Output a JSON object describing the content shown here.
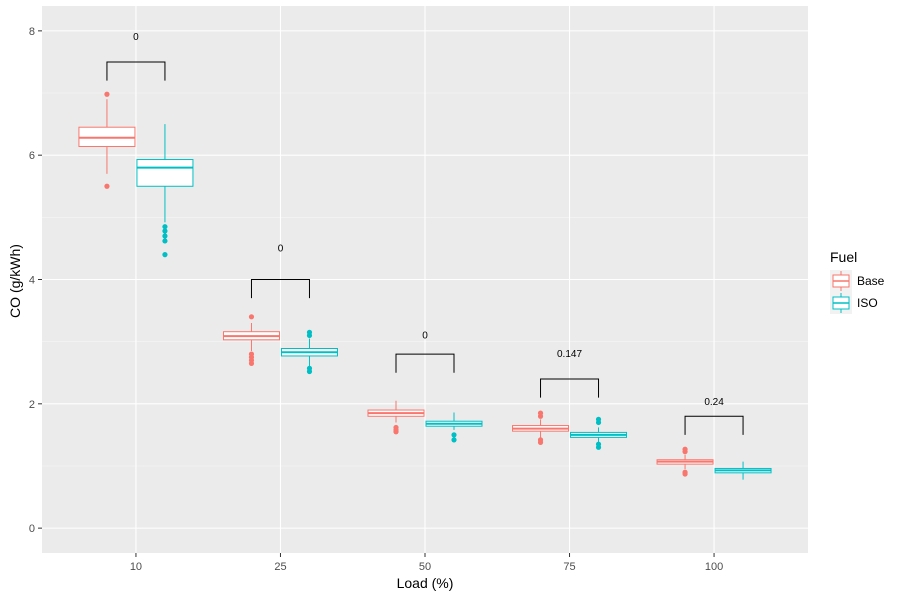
{
  "chart_data": {
    "type": "boxplot",
    "xlabel": "Load (%)",
    "ylabel": "CO (g/kWh)",
    "categories": [
      "10",
      "25",
      "50",
      "75",
      "100"
    ],
    "ylim": [
      -0.4,
      8.4
    ],
    "yticks": [
      0,
      2,
      4,
      6,
      8
    ],
    "grid": true,
    "legend": {
      "title": "Fuel",
      "position": "right",
      "entries": [
        "Base",
        "ISO"
      ]
    },
    "colors": {
      "Base": "#F8766D",
      "ISO": "#00BFC4"
    },
    "series": [
      {
        "name": "Base",
        "boxes": [
          {
            "category": "10",
            "whisker_low": 5.7,
            "q1": 6.14,
            "median": 6.28,
            "q3": 6.45,
            "whisker_high": 6.9,
            "outliers": [
              5.5,
              6.98
            ]
          },
          {
            "category": "25",
            "whisker_low": 2.85,
            "q1": 3.03,
            "median": 3.09,
            "q3": 3.16,
            "whisker_high": 3.3,
            "outliers": [
              2.65,
              2.7,
              2.75,
              2.8,
              3.4
            ]
          },
          {
            "category": "50",
            "whisker_low": 1.7,
            "q1": 1.8,
            "median": 1.85,
            "q3": 1.9,
            "whisker_high": 2.05,
            "outliers": [
              1.55,
              1.58,
              1.62
            ]
          },
          {
            "category": "75",
            "whisker_low": 1.45,
            "q1": 1.56,
            "median": 1.6,
            "q3": 1.65,
            "whisker_high": 1.75,
            "outliers": [
              1.38,
              1.42,
              1.8,
              1.85
            ]
          },
          {
            "category": "100",
            "whisker_low": 0.95,
            "q1": 1.03,
            "median": 1.07,
            "q3": 1.1,
            "whisker_high": 1.18,
            "outliers": [
              0.87,
              0.9,
              1.23,
              1.27
            ]
          }
        ]
      },
      {
        "name": "ISO",
        "boxes": [
          {
            "category": "10",
            "whisker_low": 4.92,
            "q1": 5.5,
            "median": 5.8,
            "q3": 5.93,
            "whisker_high": 6.5,
            "outliers": [
              4.4,
              4.62,
              4.7,
              4.78,
              4.85
            ]
          },
          {
            "category": "25",
            "whisker_low": 2.6,
            "q1": 2.77,
            "median": 2.83,
            "q3": 2.89,
            "whisker_high": 3.05,
            "outliers": [
              2.52,
              2.57,
              3.1,
              3.15
            ]
          },
          {
            "category": "50",
            "whisker_low": 1.58,
            "q1": 1.64,
            "median": 1.68,
            "q3": 1.72,
            "whisker_high": 1.86,
            "outliers": [
              1.42,
              1.5
            ]
          },
          {
            "category": "75",
            "whisker_low": 1.38,
            "q1": 1.46,
            "median": 1.5,
            "q3": 1.54,
            "whisker_high": 1.62,
            "outliers": [
              1.3,
              1.35,
              1.7,
              1.75
            ]
          },
          {
            "category": "100",
            "whisker_low": 0.78,
            "q1": 0.89,
            "median": 0.93,
            "q3": 0.96,
            "whisker_high": 1.07,
            "outliers": []
          }
        ]
      }
    ],
    "annotations": [
      {
        "category": "10",
        "label": "0",
        "bracket_y": 7.5,
        "bracket_drop": 7.2,
        "label_y": 7.85
      },
      {
        "category": "25",
        "label": "0",
        "bracket_y": 4.0,
        "bracket_drop": 3.7,
        "label_y": 4.45
      },
      {
        "category": "50",
        "label": "0",
        "bracket_y": 2.8,
        "bracket_drop": 2.5,
        "label_y": 3.05
      },
      {
        "category": "75",
        "label": "0.147",
        "bracket_y": 2.4,
        "bracket_drop": 2.1,
        "label_y": 2.75
      },
      {
        "category": "100",
        "label": "0.24",
        "bracket_y": 1.8,
        "bracket_drop": 1.5,
        "label_y": 1.98
      }
    ]
  }
}
